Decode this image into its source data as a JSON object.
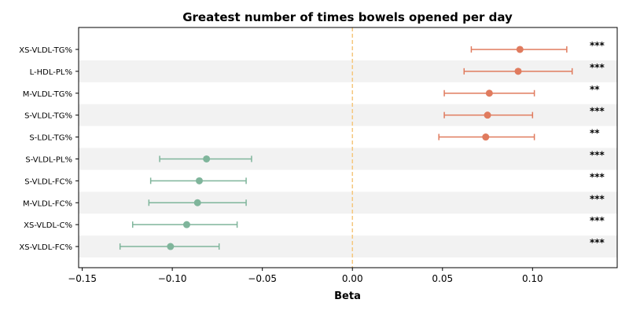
{
  "chart_data": {
    "type": "forest",
    "title": "Greatest number of times bowels opened per day",
    "xlabel": "Beta",
    "ylabel": "",
    "xlim": [
      -0.152,
      0.147
    ],
    "xticks": [
      -0.15,
      -0.1,
      -0.05,
      0.0,
      0.05,
      0.1
    ],
    "xtick_labels": [
      "−0.15",
      "−0.10",
      "−0.05",
      "0.00",
      "0.05",
      "0.10"
    ],
    "reference_line": 0.0,
    "grid": false,
    "row_shading": "alternating",
    "colors": {
      "positive": "#e07b5e",
      "negative": "#7fb59b",
      "reference": "#f5c77e",
      "band": "#f2f2f2"
    },
    "rows": [
      {
        "label": "XS-VLDL-TG%",
        "beta": 0.093,
        "ci": [
          0.066,
          0.119
        ],
        "sig": "***"
      },
      {
        "label": "L-HDL-PL%",
        "beta": 0.092,
        "ci": [
          0.062,
          0.122
        ],
        "sig": "***"
      },
      {
        "label": "M-VLDL-TG%",
        "beta": 0.076,
        "ci": [
          0.051,
          0.101
        ],
        "sig": "**"
      },
      {
        "label": "S-VLDL-TG%",
        "beta": 0.075,
        "ci": [
          0.051,
          0.1
        ],
        "sig": "***"
      },
      {
        "label": "S-LDL-TG%",
        "beta": 0.074,
        "ci": [
          0.048,
          0.101
        ],
        "sig": "**"
      },
      {
        "label": "S-VLDL-PL%",
        "beta": -0.081,
        "ci": [
          -0.107,
          -0.056
        ],
        "sig": "***"
      },
      {
        "label": "S-VLDL-FC%",
        "beta": -0.085,
        "ci": [
          -0.112,
          -0.059
        ],
        "sig": "***"
      },
      {
        "label": "M-VLDL-FC%",
        "beta": -0.086,
        "ci": [
          -0.113,
          -0.059
        ],
        "sig": "***"
      },
      {
        "label": "XS-VLDL-C%",
        "beta": -0.092,
        "ci": [
          -0.122,
          -0.064
        ],
        "sig": "***"
      },
      {
        "label": "XS-VLDL-FC%",
        "beta": -0.101,
        "ci": [
          -0.129,
          -0.074
        ],
        "sig": "***"
      }
    ]
  }
}
